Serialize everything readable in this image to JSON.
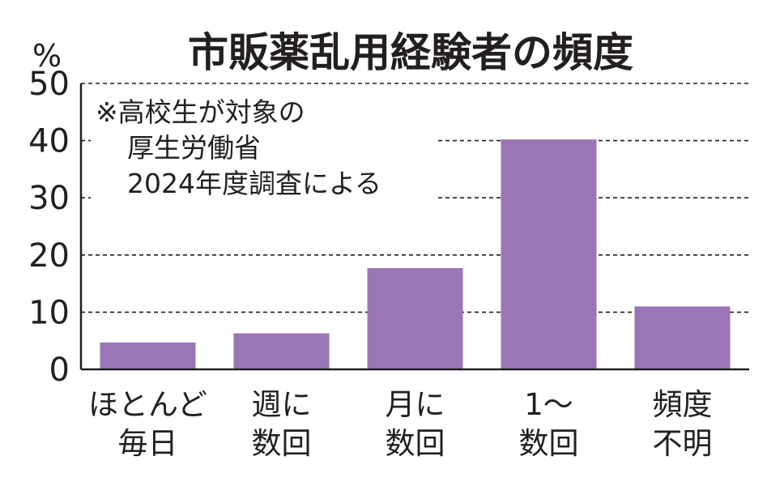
{
  "chart_data": {
    "type": "bar",
    "title": "市販薬乱用経験者の頻度",
    "ylabel": "%",
    "xlabel": "",
    "ylim": [
      0,
      50
    ],
    "yticks": [
      "0",
      "10",
      "20",
      "30",
      "40",
      "50"
    ],
    "grid": true,
    "categories": [
      [
        "ほとんど",
        "毎日"
      ],
      [
        "週に",
        "数回"
      ],
      [
        "月に",
        "数回"
      ],
      [
        "1〜",
        "数回"
      ],
      [
        "頻度",
        "不明"
      ]
    ],
    "values": [
      4.7,
      6.3,
      17.7,
      40.2,
      11.0
    ],
    "annotation": [
      "※高校生が対象の",
      "厚生労働省",
      "2024年度調査による"
    ],
    "bar_color": "#9b76b6"
  }
}
